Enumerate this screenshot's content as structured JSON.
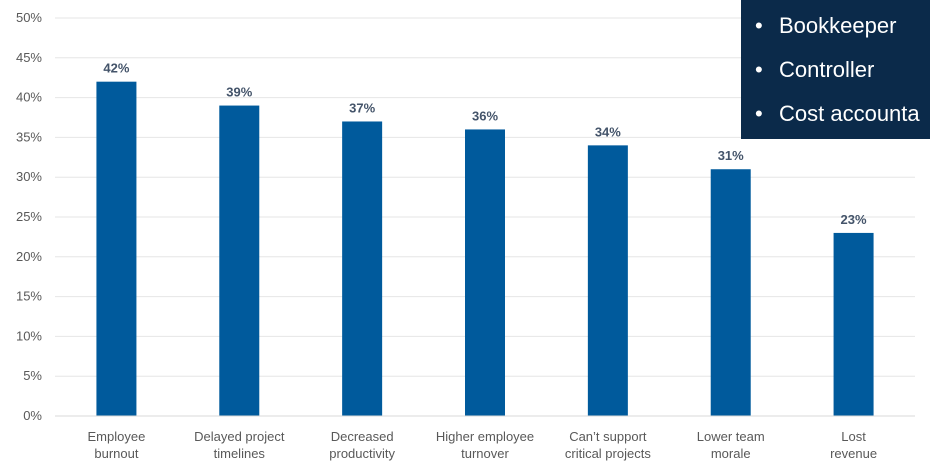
{
  "chart_data": {
    "type": "bar",
    "categories": [
      [
        "Employee",
        "burnout"
      ],
      [
        "Delayed project",
        "timelines"
      ],
      [
        "Decreased",
        "productivity"
      ],
      [
        "Higher employee",
        "turnover"
      ],
      [
        "Can’t support",
        "critical projects"
      ],
      [
        "Lower team",
        "morale"
      ],
      [
        "Lost",
        "revenue"
      ]
    ],
    "values": [
      42,
      39,
      37,
      36,
      34,
      31,
      23
    ],
    "data_labels": [
      "42%",
      "39%",
      "37%",
      "36%",
      "34%",
      "31%",
      "23%"
    ],
    "ylim": [
      0,
      50
    ],
    "yticks": [
      0,
      5,
      10,
      15,
      20,
      25,
      30,
      35,
      40,
      45,
      50
    ],
    "ytick_labels": [
      "0%",
      "5%",
      "10%",
      "15%",
      "20%",
      "25%",
      "30%",
      "35%",
      "40%",
      "45%",
      "50%"
    ],
    "grid": true,
    "bar_color": "#005a9c",
    "title": "",
    "xlabel": "",
    "ylabel": ""
  },
  "overlay": {
    "background": "#0b2a4a",
    "items": [
      "Bookkeeper",
      "Controller",
      "Cost accounta"
    ]
  }
}
